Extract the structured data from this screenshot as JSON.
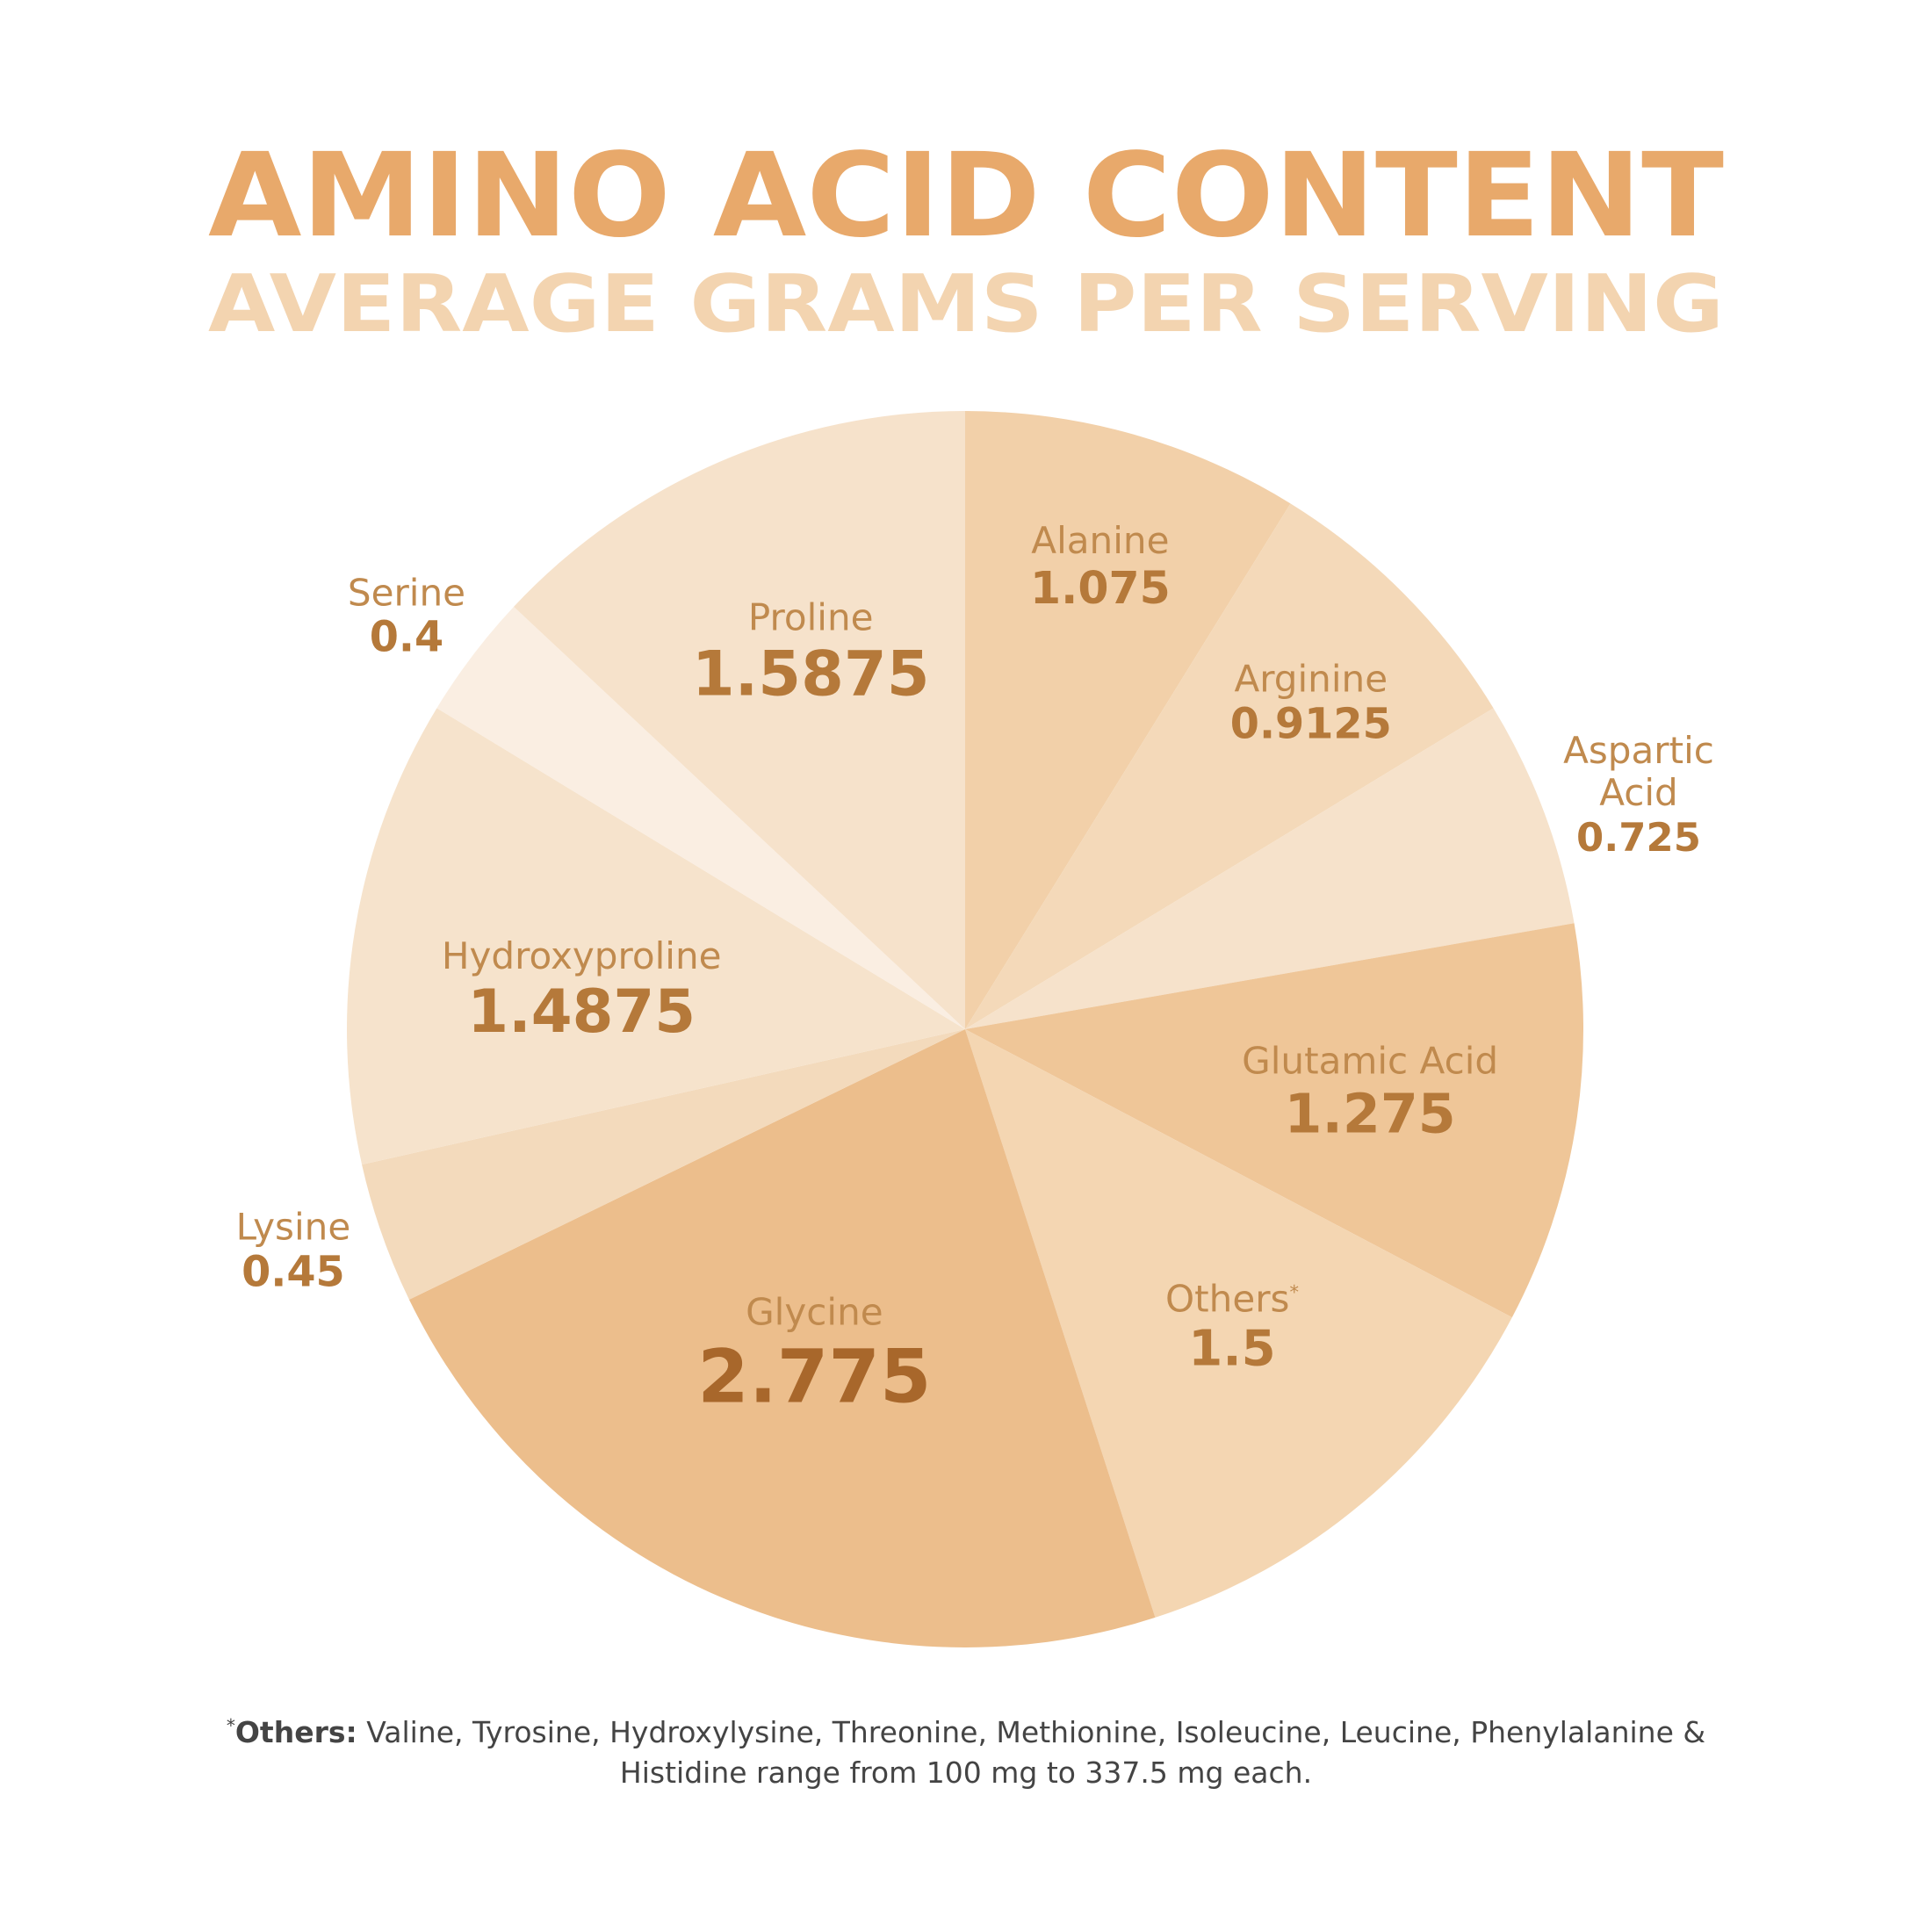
{
  "chart_data": {
    "type": "pie",
    "title": "AMINO ACID CONTENT",
    "subtitle": "AVERAGE GRAMS PER SERVING",
    "categories": [
      "Alanine",
      "Arginine",
      "Aspartic Acid",
      "Glutamic Acid",
      "Others",
      "Glycine",
      "Lysine",
      "Hydroxyproline",
      "Serine",
      "Proline"
    ],
    "values": [
      1.075,
      0.9125,
      0.725,
      1.275,
      1.5,
      2.775,
      0.45,
      1.4875,
      0.4,
      1.5875
    ],
    "colors": [
      "#f2d0a9",
      "#f4d9b9",
      "#f6e2cb",
      "#efc698",
      "#f4d6b2",
      "#ecbe8c",
      "#f3dabc",
      "#f6e3cc",
      "#faeee2",
      "#f6e2cb"
    ]
  },
  "footnote": {
    "marker": "*",
    "lead": "Others:",
    "text": "Valine, Tyrosine, Hydroxylysine, Threonine, Methionine, Isoleucine, Leucine, Phenylalanine & Histidine range from 100 mg to 337.5 mg each."
  }
}
